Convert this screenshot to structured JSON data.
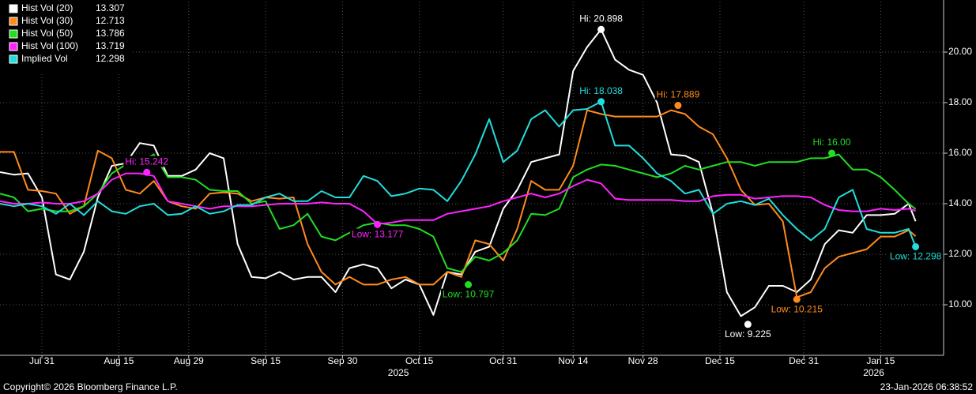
{
  "chart_data": {
    "type": "line",
    "x": [
      "2025-07-23",
      "2025-07-25",
      "2025-07-29",
      "2025-07-31",
      "2025-08-04",
      "2025-08-06",
      "2025-08-08",
      "2025-08-12",
      "2025-08-14",
      "2025-08-18",
      "2025-08-20",
      "2025-08-22",
      "2025-08-26",
      "2025-08-28",
      "2025-09-01",
      "2025-09-03",
      "2025-09-05",
      "2025-09-09",
      "2025-09-11",
      "2025-09-15",
      "2025-09-17",
      "2025-09-19",
      "2025-09-23",
      "2025-09-25",
      "2025-09-29",
      "2025-10-01",
      "2025-10-03",
      "2025-10-07",
      "2025-10-09",
      "2025-10-13",
      "2025-10-15",
      "2025-10-17",
      "2025-10-21",
      "2025-10-23",
      "2025-10-27",
      "2025-10-29",
      "2025-10-31",
      "2025-11-04",
      "2025-11-06",
      "2025-11-10",
      "2025-11-12",
      "2025-11-14",
      "2025-11-18",
      "2025-11-20",
      "2025-11-24",
      "2025-11-26",
      "2025-11-28",
      "2025-12-02",
      "2025-12-04",
      "2025-12-08",
      "2025-12-10",
      "2025-12-12",
      "2025-12-16",
      "2025-12-18",
      "2025-12-22",
      "2025-12-24",
      "2025-12-26",
      "2025-12-30",
      "2026-01-01",
      "2026-01-05",
      "2026-01-07",
      "2026-01-09",
      "2026-01-13",
      "2026-01-15",
      "2026-01-19",
      "2026-01-21",
      "2026-01-22"
    ],
    "series": [
      {
        "name": "Hist Vol (20)",
        "color": "#ffffff",
        "values": [
          15.25,
          15.15,
          15.2,
          14.25,
          11.2,
          11.0,
          12.1,
          14.25,
          15.5,
          15.6,
          16.4,
          16.3,
          15.1,
          15.1,
          15.35,
          16.0,
          15.8,
          12.4,
          11.1,
          11.05,
          11.3,
          11.0,
          11.1,
          11.1,
          10.5,
          11.45,
          11.6,
          11.45,
          10.65,
          11.0,
          10.8,
          9.6,
          11.3,
          11.2,
          12.1,
          12.3,
          13.8,
          14.55,
          15.65,
          15.8,
          15.95,
          19.25,
          20.2,
          20.898,
          19.7,
          19.3,
          19.1,
          18.0,
          15.95,
          15.9,
          15.65,
          13.6,
          10.5,
          9.55,
          9.9,
          10.75,
          10.75,
          10.5,
          11.0,
          12.4,
          12.95,
          12.85,
          13.55,
          13.55,
          13.6,
          14.0,
          13.307
        ],
        "markers": [
          {
            "label": "Hi: 20.898",
            "x": "2025-11-20",
            "y": 20.898
          },
          {
            "label": "Low: 9.225",
            "x": "2025-12-19",
            "y": 9.225
          }
        ]
      },
      {
        "name": "Hist Vol (30)",
        "color": "#ff8a1c",
        "values": [
          16.05,
          16.05,
          14.55,
          14.5,
          14.4,
          13.6,
          13.9,
          16.1,
          15.8,
          14.55,
          14.4,
          14.9,
          14.1,
          13.9,
          13.8,
          14.4,
          14.45,
          14.4,
          14.1,
          14.25,
          14.2,
          14.25,
          12.4,
          11.3,
          10.8,
          11.1,
          10.8,
          10.8,
          11.0,
          11.1,
          10.8,
          10.8,
          11.3,
          11.1,
          12.55,
          12.4,
          11.75,
          13.0,
          14.9,
          14.55,
          14.55,
          15.5,
          17.7,
          17.55,
          17.45,
          17.45,
          17.45,
          17.45,
          17.7,
          17.55,
          17.05,
          16.75,
          15.8,
          14.55,
          13.95,
          14.0,
          13.3,
          10.3,
          10.5,
          11.45,
          11.9,
          12.05,
          12.2,
          12.7,
          12.7,
          12.95,
          12.713
        ],
        "markers": [
          {
            "label": "Hi: 17.889",
            "x": "2025-12-05",
            "y": 17.889
          },
          {
            "label": "Low: 10.215",
            "x": "2025-12-30",
            "y": 10.215
          }
        ]
      },
      {
        "name": "Hist Vol (50)",
        "color": "#22dd22",
        "values": [
          14.4,
          14.25,
          13.7,
          13.8,
          13.7,
          13.7,
          13.9,
          14.4,
          15.2,
          15.55,
          15.65,
          15.95,
          15.05,
          15.05,
          14.95,
          14.55,
          14.5,
          14.5,
          14.0,
          14.1,
          13.0,
          13.15,
          13.6,
          12.7,
          12.55,
          12.85,
          13.15,
          13.25,
          13.15,
          13.15,
          13.0,
          12.7,
          11.45,
          11.3,
          11.9,
          11.75,
          12.05,
          12.55,
          13.6,
          13.55,
          13.8,
          15.05,
          15.35,
          15.55,
          15.5,
          15.35,
          15.2,
          15.05,
          15.2,
          15.5,
          15.35,
          15.5,
          15.65,
          15.65,
          15.5,
          15.65,
          15.65,
          15.65,
          15.8,
          15.8,
          15.95,
          15.35,
          15.35,
          15.05,
          14.55,
          14.0,
          13.786
        ],
        "markers": [
          {
            "label": "Hi: 16.00",
            "x": "2026-01-06",
            "y": 16.0
          },
          {
            "label": "Low: 10.797",
            "x": "2025-10-24",
            "y": 10.797
          }
        ]
      },
      {
        "name": "Hist Vol (100)",
        "color": "#ff22ff",
        "values": [
          14.1,
          14.0,
          14.0,
          14.05,
          14.0,
          14.0,
          14.1,
          14.4,
          14.95,
          15.2,
          15.2,
          15.1,
          14.1,
          14.0,
          13.9,
          13.8,
          13.9,
          13.9,
          13.9,
          13.95,
          14.0,
          14.0,
          14.0,
          14.05,
          14.0,
          14.0,
          13.7,
          13.2,
          13.25,
          13.35,
          13.35,
          13.35,
          13.6,
          13.7,
          13.8,
          13.9,
          14.1,
          14.25,
          14.4,
          14.25,
          14.4,
          14.7,
          14.95,
          14.8,
          14.2,
          14.15,
          14.15,
          14.15,
          14.15,
          14.1,
          14.1,
          14.3,
          14.35,
          14.35,
          14.2,
          14.25,
          14.3,
          14.3,
          14.25,
          13.95,
          13.75,
          13.7,
          13.7,
          13.8,
          13.75,
          13.8,
          13.719
        ],
        "markers": [
          {
            "label": "Hi: 15.242",
            "x": "2025-08-21",
            "y": 15.242
          },
          {
            "label": "Low: 13.177",
            "x": "2025-10-07",
            "y": 13.177
          }
        ]
      },
      {
        "name": "Implied Vol",
        "color": "#22dddd",
        "values": [
          14.0,
          13.9,
          14.0,
          13.9,
          13.6,
          14.0,
          13.55,
          14.1,
          13.7,
          13.6,
          13.9,
          14.0,
          13.55,
          13.6,
          13.9,
          13.6,
          13.7,
          13.95,
          13.95,
          14.25,
          14.4,
          14.1,
          14.1,
          14.5,
          14.25,
          14.25,
          15.1,
          14.9,
          14.3,
          14.4,
          14.6,
          14.55,
          14.1,
          14.9,
          15.95,
          17.35,
          15.65,
          16.1,
          17.35,
          17.7,
          17.05,
          17.7,
          17.75,
          18.038,
          16.3,
          16.3,
          15.8,
          15.2,
          14.9,
          14.4,
          14.55,
          13.6,
          14.0,
          14.1,
          13.95,
          14.2,
          13.55,
          13.0,
          12.55,
          13.0,
          14.25,
          14.55,
          13.0,
          12.85,
          12.85,
          13.0,
          12.298
        ],
        "markers": [
          {
            "label": "Hi: 18.038",
            "x": "2025-11-20",
            "y": 18.038
          },
          {
            "label": "Low: 12.298",
            "x": "2026-01-22",
            "y": 12.298
          }
        ]
      }
    ],
    "xlim": [
      "2025-07-23",
      "2026-01-28"
    ],
    "xticks": [
      {
        "value": "2025-07-31",
        "label": "Jul 31"
      },
      {
        "value": "2025-08-15",
        "label": "Aug 15"
      },
      {
        "value": "2025-08-29",
        "label": "Aug 29"
      },
      {
        "value": "2025-09-15",
        "label": "Sep 15"
      },
      {
        "value": "2025-09-30",
        "label": "Sep 30"
      },
      {
        "value": "2025-10-15",
        "label": "Oct 15"
      },
      {
        "value": "2025-10-31",
        "label": "Oct 31"
      },
      {
        "value": "2025-11-14",
        "label": "Nov 14"
      },
      {
        "value": "2025-11-28",
        "label": "Nov 28"
      },
      {
        "value": "2025-12-15",
        "label": "Dec 15"
      },
      {
        "value": "2025-12-31",
        "label": "Dec 31"
      },
      {
        "value": "2026-01-15",
        "label": "Jan 15"
      }
    ],
    "year_labels": [
      {
        "value": "2025-10-10",
        "label": "2025"
      },
      {
        "value": "2026-01-14",
        "label": "2026"
      }
    ],
    "ylim": [
      8,
      22
    ],
    "yticks": [
      {
        "value": 10,
        "label": "10.00"
      },
      {
        "value": 12,
        "label": "12.00"
      },
      {
        "value": 14,
        "label": "14.00"
      },
      {
        "value": 16,
        "label": "16.00"
      },
      {
        "value": 18,
        "label": "18.00"
      },
      {
        "value": 20,
        "label": "20.00"
      }
    ],
    "grid": true,
    "legend": "top-left",
    "copyright": "Copyright© 2026 Bloomberg Finance L.P.",
    "timestamp": "23-Jan-2026 06:38:52"
  }
}
